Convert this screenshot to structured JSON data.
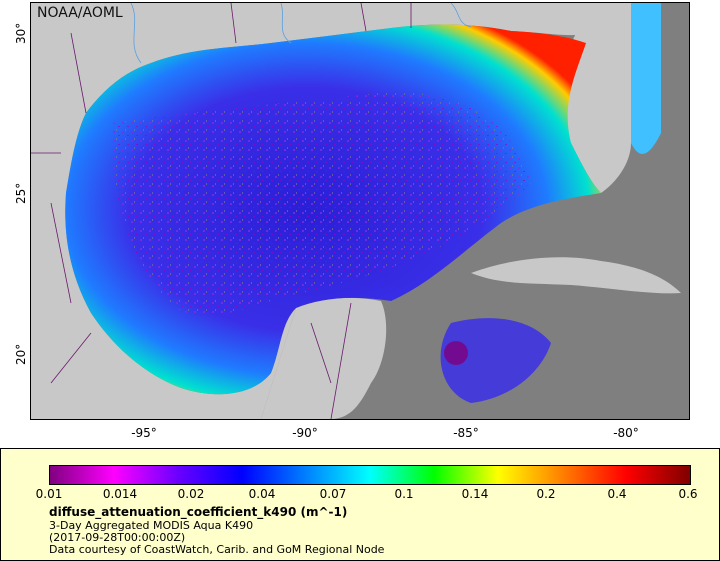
{
  "map": {
    "credit": "NOAA/AOML",
    "y_ticks": [
      "30°",
      "25°",
      "20°"
    ],
    "x_ticks": [
      "-95°",
      "-90°",
      "-85°",
      "-80°"
    ]
  },
  "legend": {
    "scale_labels": [
      "0.01",
      "0.014",
      "0.02",
      "0.04",
      "0.07",
      "0.1",
      "0.14",
      "0.2",
      "0.4",
      "0.6"
    ],
    "variable": "diffuse_attenuation_coefficient_k490 (m^-1)",
    "product": "3-Day Aggregated MODIS Aqua K490",
    "time": "(2017-09-28T00:00:00Z)",
    "source": "Data courtesy of CoastWatch, Carib. and GoM Regional Node"
  },
  "colors": {
    "land": "#c8c8c8",
    "no_data": "#7f7f7f",
    "colorbar": [
      "#800080",
      "#ff00ff",
      "#6a00ff",
      "#0000ff",
      "#0080ff",
      "#00ffff",
      "#00ff00",
      "#ffff00",
      "#ff8000",
      "#ff0000",
      "#800000"
    ]
  }
}
